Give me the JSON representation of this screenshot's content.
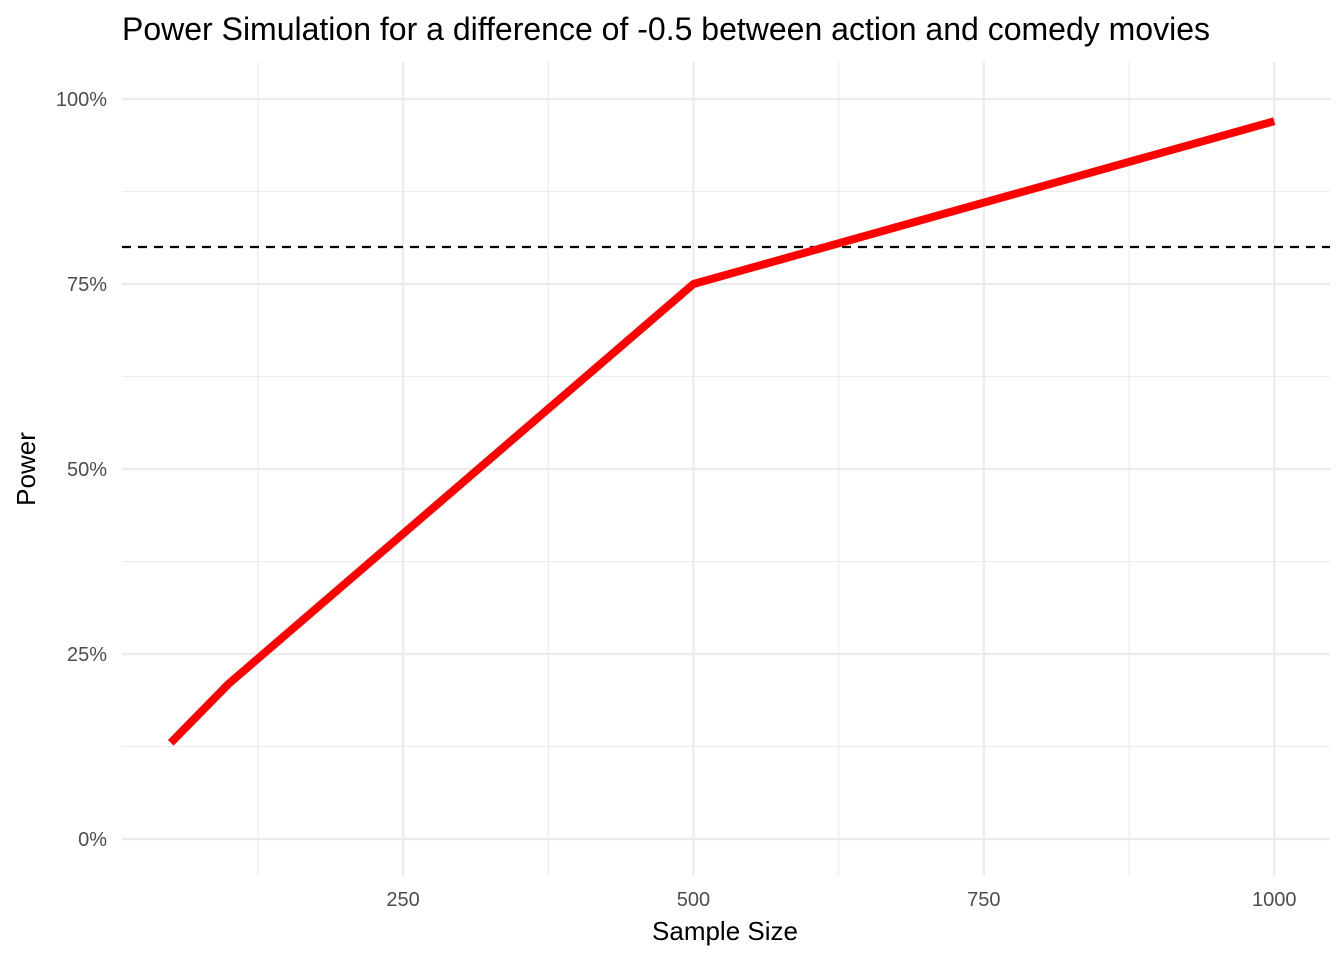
{
  "chart_data": {
    "type": "line",
    "title": "Power Simulation for a difference of -0.5 between action and comedy movies",
    "xlabel": "Sample Size",
    "ylabel": "Power",
    "x_ticks": [
      250,
      500,
      750,
      1000
    ],
    "y_ticks": [
      0,
      0.25,
      0.5,
      0.75,
      1.0
    ],
    "y_tick_labels": [
      "0%",
      "25%",
      "50%",
      "75%",
      "100%"
    ],
    "xlim": [
      8,
      1048
    ],
    "ylim": [
      -0.05,
      1.05
    ],
    "grid": true,
    "series": [
      {
        "color": "#ff0000",
        "x": [
          50,
          100,
          500,
          1000
        ],
        "y": [
          0.13,
          0.21,
          0.75,
          0.97
        ]
      }
    ],
    "reference_line": {
      "y": 0.8,
      "style": "dashed",
      "color": "#000000"
    }
  }
}
